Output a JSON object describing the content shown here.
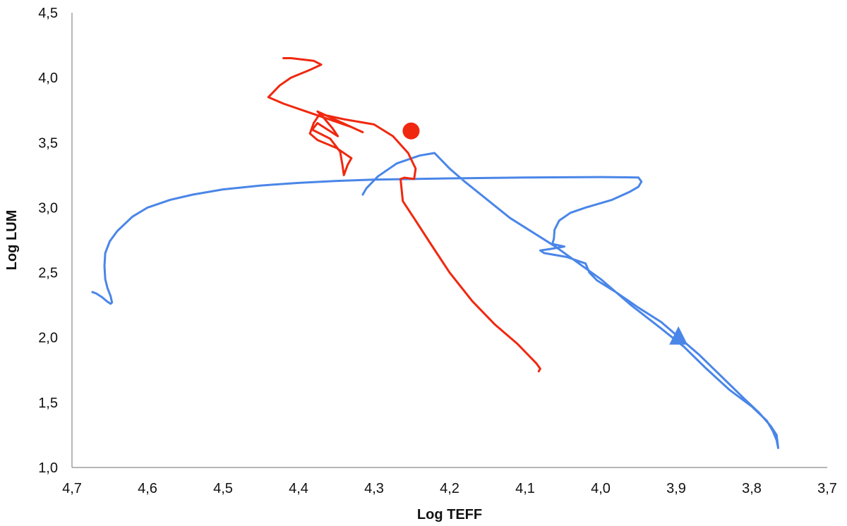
{
  "chart_data": {
    "type": "scatter",
    "title": "",
    "xlabel": "Log TEFF",
    "ylabel": "Log LUM",
    "x_reversed": true,
    "xlim": [
      3.7,
      4.7
    ],
    "ylim": [
      1.0,
      4.5
    ],
    "x_ticks": [
      4.7,
      4.6,
      4.5,
      4.4,
      4.3,
      4.2,
      4.1,
      4.0,
      3.9,
      3.8,
      3.7
    ],
    "x_tick_labels": [
      "4,7",
      "4,6",
      "4,5",
      "4,4",
      "4,3",
      "4,2",
      "4,1",
      "4,0",
      "3,9",
      "3,8",
      "3,7"
    ],
    "y_ticks": [
      1.0,
      1.5,
      2.0,
      2.5,
      3.0,
      3.5,
      4.0,
      4.5
    ],
    "y_tick_labels": [
      "1,0",
      "1,5",
      "2,0",
      "2,5",
      "3,0",
      "3,5",
      "4,0",
      "4,5"
    ],
    "grid": false,
    "legend": "none",
    "series": [
      {
        "color": "#4a86e8",
        "mode": "line",
        "points": [
          [
            4.673,
            2.35
          ],
          [
            4.668,
            2.34
          ],
          [
            4.66,
            2.31
          ],
          [
            4.654,
            2.28
          ],
          [
            4.649,
            2.26
          ],
          [
            4.647,
            2.27
          ],
          [
            4.649,
            2.32
          ],
          [
            4.653,
            2.38
          ],
          [
            4.656,
            2.45
          ],
          [
            4.657,
            2.55
          ],
          [
            4.656,
            2.65
          ],
          [
            4.65,
            2.74
          ],
          [
            4.64,
            2.82
          ],
          [
            4.62,
            2.93
          ],
          [
            4.6,
            3.0
          ],
          [
            4.57,
            3.06
          ],
          [
            4.54,
            3.1
          ],
          [
            4.5,
            3.14
          ],
          [
            4.45,
            3.17
          ],
          [
            4.4,
            3.19
          ],
          [
            4.35,
            3.205
          ],
          [
            4.3,
            3.215
          ],
          [
            4.25,
            3.22
          ],
          [
            4.2,
            3.225
          ],
          [
            4.1,
            3.232
          ],
          [
            4.0,
            3.235
          ],
          [
            3.95,
            3.232
          ],
          [
            3.946,
            3.2
          ],
          [
            3.95,
            3.16
          ],
          [
            3.962,
            3.12
          ],
          [
            3.985,
            3.06
          ],
          [
            4.02,
            3.0
          ],
          [
            4.04,
            2.96
          ],
          [
            4.055,
            2.9
          ],
          [
            4.061,
            2.83
          ],
          [
            4.062,
            2.76
          ],
          [
            4.064,
            2.72
          ],
          [
            4.048,
            2.7
          ],
          [
            4.068,
            2.68
          ],
          [
            4.08,
            2.67
          ],
          [
            4.075,
            2.65
          ],
          [
            4.045,
            2.62
          ],
          [
            4.02,
            2.57
          ],
          [
            4.015,
            2.5
          ],
          [
            4.005,
            2.44
          ],
          [
            3.98,
            2.35
          ],
          [
            3.95,
            2.23
          ],
          [
            3.92,
            2.12
          ],
          [
            3.9,
            2.02
          ],
          [
            3.87,
            1.87
          ],
          [
            3.84,
            1.7
          ],
          [
            3.81,
            1.53
          ],
          [
            3.79,
            1.42
          ],
          [
            3.775,
            1.32
          ],
          [
            3.767,
            1.25
          ],
          [
            3.765,
            1.15
          ],
          [
            3.767,
            1.21
          ],
          [
            3.772,
            1.28
          ],
          [
            3.78,
            1.36
          ],
          [
            3.8,
            1.47
          ],
          [
            3.83,
            1.6
          ],
          [
            3.86,
            1.76
          ],
          [
            3.89,
            1.93
          ],
          [
            3.92,
            2.07
          ],
          [
            3.96,
            2.25
          ],
          [
            4.0,
            2.45
          ],
          [
            4.06,
            2.7
          ],
          [
            4.12,
            2.92
          ],
          [
            4.18,
            3.2
          ],
          [
            4.2,
            3.3
          ],
          [
            4.22,
            3.42
          ],
          [
            4.24,
            3.4
          ],
          [
            4.27,
            3.34
          ],
          [
            4.295,
            3.24
          ],
          [
            4.31,
            3.15
          ],
          [
            4.315,
            3.1
          ]
        ]
      },
      {
        "color": "#f0280f",
        "mode": "line",
        "points": [
          [
            4.42,
            4.15
          ],
          [
            4.41,
            4.15
          ],
          [
            4.38,
            4.13
          ],
          [
            4.37,
            4.1
          ],
          [
            4.385,
            4.06
          ],
          [
            4.41,
            4.0
          ],
          [
            4.425,
            3.94
          ],
          [
            4.44,
            3.85
          ],
          [
            4.42,
            3.8
          ],
          [
            4.39,
            3.74
          ],
          [
            4.36,
            3.68
          ],
          [
            4.33,
            3.62
          ],
          [
            4.315,
            3.58
          ],
          [
            4.375,
            3.74
          ],
          [
            4.368,
            3.7
          ],
          [
            4.355,
            3.61
          ],
          [
            4.348,
            3.55
          ],
          [
            4.375,
            3.65
          ],
          [
            4.382,
            3.6
          ],
          [
            4.358,
            3.53
          ],
          [
            4.345,
            3.43
          ],
          [
            4.342,
            3.33
          ],
          [
            4.34,
            3.25
          ],
          [
            4.335,
            3.33
          ],
          [
            4.33,
            3.38
          ],
          [
            4.35,
            3.46
          ],
          [
            4.375,
            3.52
          ],
          [
            4.385,
            3.57
          ],
          [
            4.38,
            3.65
          ],
          [
            4.372,
            3.72
          ],
          [
            4.34,
            3.68
          ],
          [
            4.3,
            3.64
          ],
          [
            4.275,
            3.55
          ],
          [
            4.255,
            3.42
          ],
          [
            4.245,
            3.3
          ],
          [
            4.247,
            3.22
          ],
          [
            4.26,
            3.23
          ],
          [
            4.265,
            3.22
          ],
          [
            4.262,
            3.05
          ],
          [
            4.245,
            2.9
          ],
          [
            4.225,
            2.72
          ],
          [
            4.2,
            2.5
          ],
          [
            4.17,
            2.28
          ],
          [
            4.14,
            2.1
          ],
          [
            4.11,
            1.95
          ],
          [
            4.095,
            1.86
          ],
          [
            4.085,
            1.8
          ],
          [
            4.08,
            1.76
          ],
          [
            4.082,
            1.74
          ]
        ]
      },
      {
        "color": "#f0280f",
        "mode": "marker",
        "marker": "circle",
        "points": [
          [
            4.251,
            3.59
          ]
        ]
      },
      {
        "color": "#4a86e8",
        "mode": "marker",
        "marker": "triangle",
        "points": [
          [
            3.897,
            2.0
          ]
        ]
      }
    ]
  }
}
